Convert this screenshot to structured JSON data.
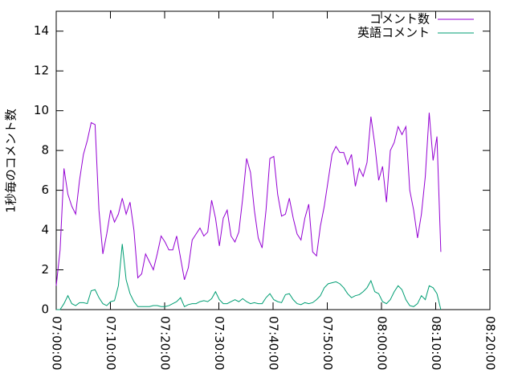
{
  "chart_data": {
    "type": "line",
    "y_label": "1秒毎のコメント数",
    "x": [
      "07:00:00",
      "07:00:43",
      "07:01:26",
      "07:02:09",
      "07:02:52",
      "07:03:35",
      "07:04:18",
      "07:05:01",
      "07:05:44",
      "07:06:27",
      "07:07:10",
      "07:07:53",
      "07:08:36",
      "07:09:19",
      "07:10:02",
      "07:10:45",
      "07:11:28",
      "07:12:11",
      "07:12:54",
      "07:13:37",
      "07:14:20",
      "07:15:03",
      "07:15:46",
      "07:16:29",
      "07:17:12",
      "07:17:55",
      "07:18:38",
      "07:19:21",
      "07:20:04",
      "07:20:47",
      "07:21:30",
      "07:22:13",
      "07:22:56",
      "07:23:39",
      "07:24:22",
      "07:25:05",
      "07:25:48",
      "07:26:31",
      "07:27:14",
      "07:27:57",
      "07:28:40",
      "07:29:23",
      "07:30:06",
      "07:30:49",
      "07:31:32",
      "07:32:15",
      "07:32:58",
      "07:33:41",
      "07:34:24",
      "07:35:07",
      "07:35:50",
      "07:36:33",
      "07:37:16",
      "07:37:59",
      "07:38:42",
      "07:39:25",
      "07:40:08",
      "07:40:51",
      "07:41:34",
      "07:42:17",
      "07:43:00",
      "07:43:43",
      "07:44:26",
      "07:45:09",
      "07:45:52",
      "07:46:35",
      "07:47:18",
      "07:48:01",
      "07:48:44",
      "07:49:27",
      "07:50:10",
      "07:50:53",
      "07:51:36",
      "07:52:19",
      "07:53:02",
      "07:53:45",
      "07:54:28",
      "07:55:11",
      "07:55:54",
      "07:56:37",
      "07:57:20",
      "07:58:03",
      "07:58:46",
      "07:59:29",
      "08:00:12",
      "08:00:55",
      "08:01:38",
      "08:02:21",
      "08:03:04",
      "08:03:47",
      "08:04:30",
      "08:05:13",
      "08:05:56",
      "08:06:39",
      "08:07:22",
      "08:08:05",
      "08:08:48",
      "08:09:31",
      "08:10:14",
      "08:10:57"
    ],
    "series": [
      {
        "name": "コメント数",
        "color": "#9400d3",
        "values": [
          1.2,
          3,
          7.1,
          5.8,
          5.2,
          4.8,
          6.5,
          7.8,
          8.5,
          9.4,
          9.3,
          5.0,
          2.8,
          3.8,
          5.0,
          4.4,
          4.8,
          5.6,
          4.8,
          5.4,
          4.0,
          1.6,
          1.8,
          2.8,
          2.4,
          2.0,
          2.8,
          3.7,
          3.4,
          3.0,
          3.0,
          3.7,
          2.6,
          1.5,
          2.1,
          3.5,
          3.8,
          4.1,
          3.7,
          3.9,
          5.5,
          4.6,
          3.2,
          4.6,
          5.0,
          3.7,
          3.4,
          3.9,
          5.6,
          7.6,
          6.9,
          5.0,
          3.6,
          3.1,
          5.0,
          7.6,
          7.7,
          5.8,
          4.7,
          4.8,
          5.6,
          4.6,
          3.8,
          3.5,
          4.6,
          5.3,
          2.9,
          2.7,
          4.2,
          5.2,
          6.5,
          7.8,
          8.2,
          7.9,
          7.9,
          7.3,
          7.8,
          6.2,
          7.1,
          6.7,
          7.4,
          9.7,
          8.3,
          6.5,
          7.2,
          5.4,
          8.0,
          8.4,
          9.2,
          8.8,
          9.2,
          6.0,
          5.0,
          3.6,
          4.8,
          6.7,
          9.9,
          7.5,
          8.7,
          2.9
        ]
      },
      {
        "name": "英語コメント",
        "color": "#009e73",
        "values": [
          0,
          0,
          0.3,
          0.7,
          0.3,
          0.2,
          0.35,
          0.35,
          0.3,
          0.95,
          1.0,
          0.6,
          0.3,
          0.2,
          0.4,
          0.45,
          1.2,
          3.3,
          1.5,
          0.8,
          0.4,
          0.15,
          0.15,
          0.15,
          0.15,
          0.2,
          0.2,
          0.15,
          0.15,
          0.2,
          0.3,
          0.4,
          0.6,
          0.15,
          0.25,
          0.3,
          0.3,
          0.4,
          0.45,
          0.4,
          0.55,
          0.9,
          0.5,
          0.3,
          0.3,
          0.4,
          0.5,
          0.4,
          0.55,
          0.4,
          0.3,
          0.35,
          0.3,
          0.3,
          0.6,
          0.8,
          0.5,
          0.4,
          0.35,
          0.75,
          0.8,
          0.5,
          0.3,
          0.25,
          0.35,
          0.3,
          0.35,
          0.5,
          0.7,
          1.1,
          1.3,
          1.35,
          1.4,
          1.3,
          1.1,
          0.8,
          0.6,
          0.7,
          0.75,
          0.9,
          1.1,
          1.45,
          0.9,
          0.8,
          0.4,
          0.3,
          0.5,
          0.9,
          1.2,
          1.0,
          0.5,
          0.2,
          0.15,
          0.3,
          0.7,
          0.5,
          1.2,
          1.1,
          0.8,
          0
        ]
      }
    ],
    "xlim": [
      "07:00:00",
      "08:20:00"
    ],
    "xticks": [
      "07:00:00",
      "07:10:00",
      "07:20:00",
      "07:30:00",
      "07:40:00",
      "07:50:00",
      "08:00:00",
      "08:10:00",
      "08:20:00"
    ],
    "ylim": [
      0,
      15
    ],
    "yticks": [
      0,
      2,
      4,
      6,
      8,
      10,
      12,
      14
    ],
    "legend": "top-right"
  }
}
